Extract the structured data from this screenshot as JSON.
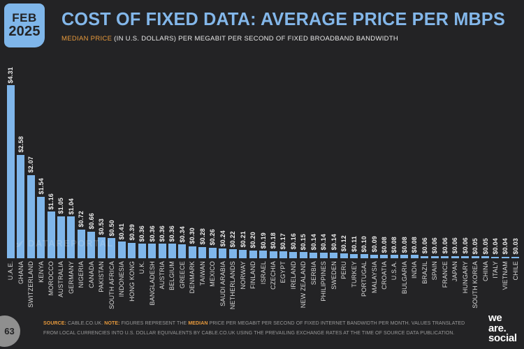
{
  "header": {
    "date_badge": {
      "month": "FEB",
      "year": "2025"
    },
    "title": "COST OF FIXED DATA: AVERAGE PRICE PER MBPS",
    "subtitle_highlight": "MEDIAN PRICE",
    "subtitle_rest": " (IN U.S. DOLLARS) PER MEGABIT PER SECOND OF FIXED BROADBAND BANDWIDTH"
  },
  "watermark": {
    "text": "DATAREPORTAL"
  },
  "chart_data": {
    "type": "bar",
    "title": "COST OF FIXED DATA: AVERAGE PRICE PER MBPS",
    "subtitle": "MEDIAN PRICE (IN U.S. DOLLARS) PER MEGABIT PER SECOND OF FIXED BROADBAND BANDWIDTH",
    "unit": "USD",
    "value_prefix": "$",
    "ylim": [
      0,
      4.31
    ],
    "grid": false,
    "legend": false,
    "bar_color": "#7fb6ea",
    "categories": [
      "U.A.E.",
      "GHANA",
      "SWITZERLAND",
      "KENYA",
      "MOROCCO",
      "AUSTRALIA",
      "GERMANY",
      "NIGERIA",
      "CANADA",
      "PAKISTAN",
      "SOUTH AFRICA",
      "INDONESIA",
      "HONG KONG",
      "U.K.",
      "BANGLADESH",
      "AUSTRIA",
      "BELGIUM",
      "GREECE",
      "DENMARK",
      "TAIWAN",
      "MEXICO",
      "SAUDI ARABIA",
      "NETHERLANDS",
      "NORWAY",
      "FINLAND",
      "ISRAEL",
      "CZECHIA",
      "EGYPT",
      "IRELAND",
      "NEW ZEALAND",
      "SERBIA",
      "PHILIPPINES",
      "SWEDEN",
      "PERU",
      "TURKEY",
      "PORTUGAL",
      "MALAYSIA",
      "CROATIA",
      "U.S.A.",
      "BULGARIA",
      "INDIA",
      "BRAZIL",
      "SPAIN",
      "FRANCE",
      "JAPAN",
      "HUNGARY",
      "SOUTH KOREA",
      "CHINA",
      "ITALY",
      "VIETNAM",
      "CHILE"
    ],
    "values": [
      4.31,
      2.58,
      2.07,
      1.54,
      1.16,
      1.05,
      1.04,
      0.72,
      0.66,
      0.53,
      0.5,
      0.41,
      0.39,
      0.36,
      0.36,
      0.36,
      0.36,
      0.34,
      0.3,
      0.28,
      0.26,
      0.24,
      0.22,
      0.21,
      0.2,
      0.19,
      0.18,
      0.17,
      0.16,
      0.15,
      0.14,
      0.14,
      0.14,
      0.12,
      0.11,
      0.1,
      0.09,
      0.08,
      0.08,
      0.08,
      0.08,
      0.06,
      0.06,
      0.06,
      0.06,
      0.06,
      0.05,
      0.05,
      0.04,
      0.04,
      0.03
    ]
  },
  "footer": {
    "page_number": "63",
    "source_label": "SOURCE:",
    "source_text": " CABLE.CO.UK. ",
    "note_label": "NOTE:",
    "note_before": " FIGURES REPRESENT THE ",
    "note_highlight": "MEDIAN",
    "note_after": " PRICE PER MEGABIT PER SECOND OF FIXED INTERNET BANDWIDTH PER MONTH. VALUES TRANSLATED FROM LOCAL CURRENCIES INTO U.S. DOLLAR EQUIVALENTS BY CABLE.CO.UK USING THE PREVAILING EXCHANGE RATES AT THE TIME OF SOURCE DATA PUBLICATION.",
    "logo_lines": [
      "we",
      "are.",
      "social"
    ]
  },
  "colors": {
    "background": "#232325",
    "accent_blue": "#7fb6ea",
    "accent_orange": "#e89a3c"
  }
}
